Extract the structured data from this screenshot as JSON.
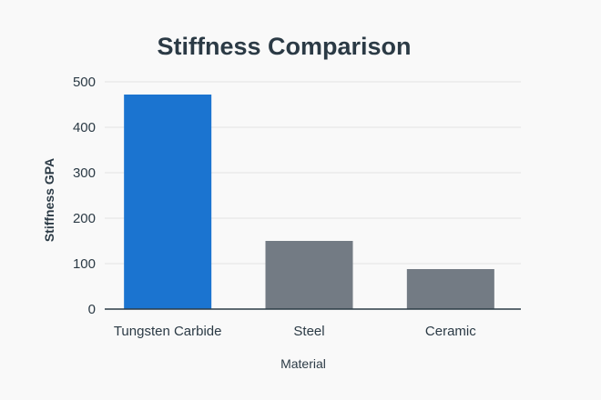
{
  "chart_data": {
    "type": "bar",
    "title": "Stiffness Comparison",
    "xlabel": "Material",
    "ylabel": "Stiffness GPA",
    "categories": [
      "Tungsten Carbide",
      "Steel",
      "Ceramic"
    ],
    "values": [
      472,
      150,
      88
    ],
    "colors": [
      "#1b74d0",
      "#737b84",
      "#737b84"
    ],
    "ylim": [
      0,
      500
    ],
    "yticks": [
      0,
      100,
      200,
      300,
      400,
      500
    ],
    "grid": true,
    "legend": "none"
  }
}
